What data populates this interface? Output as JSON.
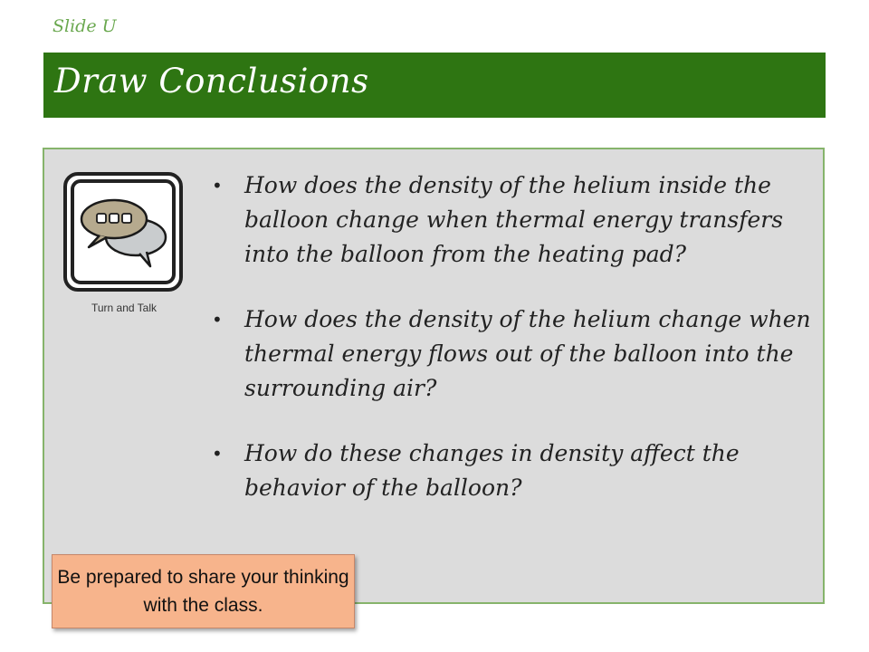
{
  "slide_label": "Slide U",
  "title": "Draw Conclusions",
  "icon": {
    "name": "turn-and-talk-icon",
    "caption": "Turn and Talk"
  },
  "bullets": [
    "How does the density of the helium inside the balloon change when thermal energy transfers into the balloon from the heating pad?",
    "How does the density of the helium change when thermal energy flows out of the balloon into the surrounding air?",
    "How do these changes in density affect the behavior of the balloon?"
  ],
  "bullet_symbol": "•",
  "note": "Be prepared to share your thinking with the class.",
  "colors": {
    "title_bar": "#2e7512",
    "slide_label": "#6aa84f",
    "content_bg": "#dcdcdc",
    "content_border": "#86b46b",
    "note_bg": "#f7b48c"
  }
}
